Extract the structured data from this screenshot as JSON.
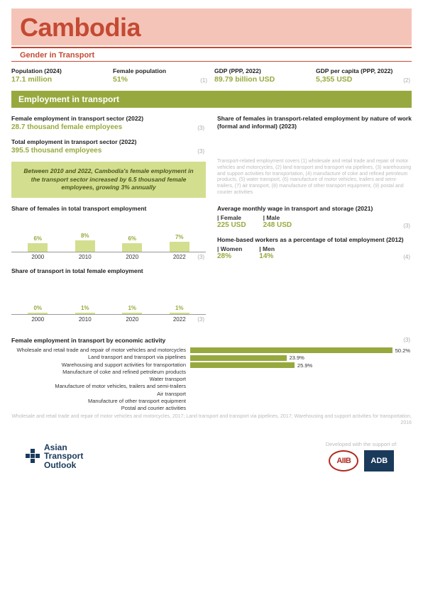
{
  "title": "Cambodia",
  "subtitle": "Gender in Transport",
  "topStats": [
    {
      "label": "Population (2024)",
      "value": "17.1 million",
      "note": ""
    },
    {
      "label": "Female population",
      "value": "51%",
      "note": "(1)"
    },
    {
      "label": "GDP (PPP, 2022)",
      "value": "89.79 billion USD",
      "note": ""
    },
    {
      "label": "GDP per capita (PPP, 2022)",
      "value": "5,355  USD",
      "note": "(2)"
    }
  ],
  "sectionTitle": "Employment in transport",
  "left": {
    "femEmp": {
      "label": "Female employment in transport sector (2022)",
      "value": "28.7 thousand female employees",
      "note": "(3)"
    },
    "totEmp": {
      "label": "Total employment in transport sector (2022)",
      "value": "395.5 thousand employees",
      "note": "(3)"
    },
    "highlight": "Between 2010 and 2022, Cambodia's female employment in the transport sector increased by 6.5 thousand female employees, growing 3% annually",
    "chart1": {
      "title": "Share of females in total transport employment",
      "note": "(3)",
      "categories": [
        "2000",
        "2010",
        "2020",
        "2022"
      ],
      "values": [
        6,
        8,
        6,
        7
      ],
      "labels": [
        "6%",
        "8%",
        "6%",
        "7%"
      ],
      "max": 20,
      "bar_color": "#d4de8f",
      "text_color": "#97a93e"
    },
    "chart2": {
      "title": "Share of transport in total female employment",
      "note": "(3)",
      "categories": [
        "2000",
        "2010",
        "2020",
        "2022"
      ],
      "values": [
        0,
        1,
        1,
        1
      ],
      "labels": [
        "0%",
        "1%",
        "1%",
        "1%"
      ],
      "max": 20,
      "bar_color": "#d4de8f",
      "text_color": "#97a93e"
    }
  },
  "right": {
    "shareNature": {
      "label": "Share of females in transport-related employment by nature of work (formal and informal) (2023)"
    },
    "defNote": "Transport-related employment covers (1) wholesale and retail trade and repair of motor vehicles and motorcycles, (2) land transport and transport via pipelines, (3) warehousing and support activities for transportation, (4) manufacture of coke and refined petroleum products, (5) water transport, (6) manufacture of motor vehicles, trailers and semi-trailers, (7) air transport, (8) manufacture of other transport equipment, (9) postal and courier activities",
    "wage": {
      "label": "Average monthly wage in transport and storage (2021)",
      "femaleLbl": "| Female",
      "femaleVal": "225 USD",
      "maleLbl": "| Male",
      "maleVal": "248 USD",
      "note": "(3)"
    },
    "homeWorkers": {
      "label": "Home-based workers as a percentage of total employment (2012)",
      "womenLbl": "| Women",
      "womenVal": "28%",
      "menLbl": "| Men",
      "menVal": "14%",
      "note": "(4)"
    }
  },
  "hchart": {
    "title": "Female employment in transport by economic activity",
    "note": "(3)",
    "max": 55,
    "bar_color": "#97a93e",
    "rows": [
      {
        "label": "Wholesale and retail trade and repair of motor vehicles and motorcycles",
        "value": 50.2,
        "pct": "50.2%"
      },
      {
        "label": "Land transport and transport via pipelines",
        "value": 23.9,
        "pct": "23.9%"
      },
      {
        "label": "Warehousing and support activities for transportation",
        "value": 25.9,
        "pct": "25.9%"
      },
      {
        "label": "Manufacture of coke and refined petroleum products",
        "value": 0,
        "pct": ""
      },
      {
        "label": "Water transport",
        "value": 0,
        "pct": ""
      },
      {
        "label": "Manufacture of motor vehicles, trailers and semi-trailers",
        "value": 0,
        "pct": ""
      },
      {
        "label": "Air transport",
        "value": 0,
        "pct": ""
      },
      {
        "label": "Manufacture of other transport equipment",
        "value": 0,
        "pct": ""
      },
      {
        "label": "Postal and courier activities",
        "value": 0,
        "pct": ""
      }
    ],
    "footnote": "Wholesale and retail trade and repair of motor vehicles and motorcycles, 2017; Land transport and transport via pipelines, 2017; Warehousing and support activities for transportation, 2016"
  },
  "footer": {
    "ato1": "Asian",
    "ato2": "Transport",
    "ato3": "Outlook",
    "supportLbl": "Developed with the support of:",
    "aiib": "AIIB",
    "adb": "ADB"
  }
}
